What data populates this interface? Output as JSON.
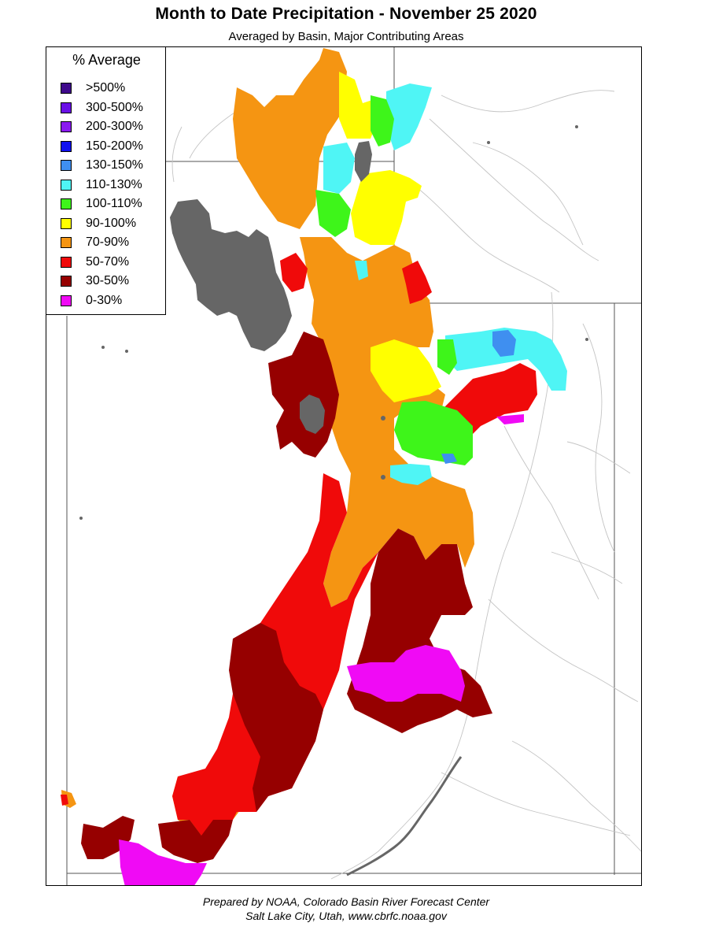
{
  "header": {
    "title": "Month to Date Precipitation - November 25 2020",
    "subtitle": "Averaged by Basin, Major Contributing Areas"
  },
  "legend": {
    "title": "% Average",
    "items": [
      {
        "label": ">500%",
        "color": "#3f0a8c"
      },
      {
        "label": "300-500%",
        "color": "#6a10e6"
      },
      {
        "label": "200-300%",
        "color": "#8a1af0"
      },
      {
        "label": "150-200%",
        "color": "#1010f0"
      },
      {
        "label": "130-150%",
        "color": "#3f8ff0"
      },
      {
        "label": "110-130%",
        "color": "#4ff5f5"
      },
      {
        "label": "100-110%",
        "color": "#3ef51a"
      },
      {
        "label": "90-100%",
        "color": "#ffff00"
      },
      {
        "label": "70-90%",
        "color": "#f59512"
      },
      {
        "label": "50-70%",
        "color": "#f00a0a"
      },
      {
        "label": "30-50%",
        "color": "#960000"
      },
      {
        "label": "0-30%",
        "color": "#f00af5"
      }
    ]
  },
  "lake_color": "#666666",
  "footer": {
    "line1": "Prepared by NOAA, Colorado Basin River Forecast Center",
    "line2": "Salt Lake City, Utah, www.cbrfc.noaa.gov"
  }
}
